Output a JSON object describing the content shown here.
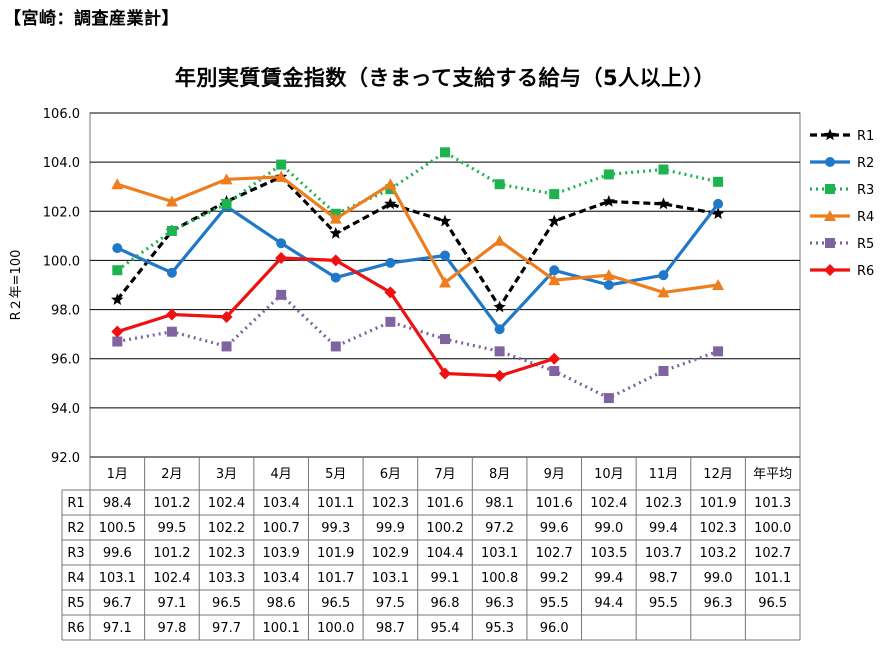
{
  "header": "【宮崎：調査産業計】",
  "chart_data": {
    "type": "line",
    "title": "年別実質賃金指数（きまって支給する給与（5人以上））",
    "ylabel": "R２年=100",
    "xlabel": "",
    "ylim": [
      92.0,
      106.0
    ],
    "y_ticks": [
      "92.0",
      "94.0",
      "96.0",
      "98.0",
      "100.0",
      "102.0",
      "104.0",
      "106.0"
    ],
    "categories": [
      "1月",
      "2月",
      "3月",
      "4月",
      "5月",
      "6月",
      "7月",
      "8月",
      "9月",
      "10月",
      "11月",
      "12月"
    ],
    "table_extra_column": "年平均",
    "legend_position": "right",
    "series": [
      {
        "name": "R1",
        "color": "#000000",
        "dash": "7,4",
        "marker": "star",
        "values": [
          98.4,
          101.2,
          102.4,
          103.4,
          101.1,
          102.3,
          101.6,
          98.1,
          101.6,
          102.4,
          102.3,
          101.9
        ],
        "annual": 101.3
      },
      {
        "name": "R2",
        "color": "#1F78C8",
        "dash": "",
        "marker": "circle",
        "values": [
          100.5,
          99.5,
          102.2,
          100.7,
          99.3,
          99.9,
          100.2,
          97.2,
          99.6,
          99.0,
          99.4,
          102.3
        ],
        "annual": 100.0
      },
      {
        "name": "R3",
        "color": "#1DB450",
        "dash": "2,4",
        "marker": "square",
        "values": [
          99.6,
          101.2,
          102.3,
          103.9,
          101.9,
          102.9,
          104.4,
          103.1,
          102.7,
          103.5,
          103.7,
          103.2
        ],
        "annual": 102.7
      },
      {
        "name": "R4",
        "color": "#EE7D1E",
        "dash": "",
        "marker": "triangle",
        "values": [
          103.1,
          102.4,
          103.3,
          103.4,
          101.7,
          103.1,
          99.1,
          100.8,
          99.2,
          99.4,
          98.7,
          99.0
        ],
        "annual": 101.1
      },
      {
        "name": "R5",
        "color": "#8064A2",
        "dash": "2,4",
        "marker": "square",
        "values": [
          96.7,
          97.1,
          96.5,
          98.6,
          96.5,
          97.5,
          96.8,
          96.3,
          95.5,
          94.4,
          95.5,
          96.3
        ],
        "annual": 96.5
      },
      {
        "name": "R6",
        "color": "#EE1111",
        "dash": "",
        "marker": "diamond",
        "values": [
          97.1,
          97.8,
          97.7,
          100.1,
          100.0,
          98.7,
          95.4,
          95.3,
          96.0,
          null,
          null,
          null
        ],
        "annual": null
      }
    ]
  }
}
